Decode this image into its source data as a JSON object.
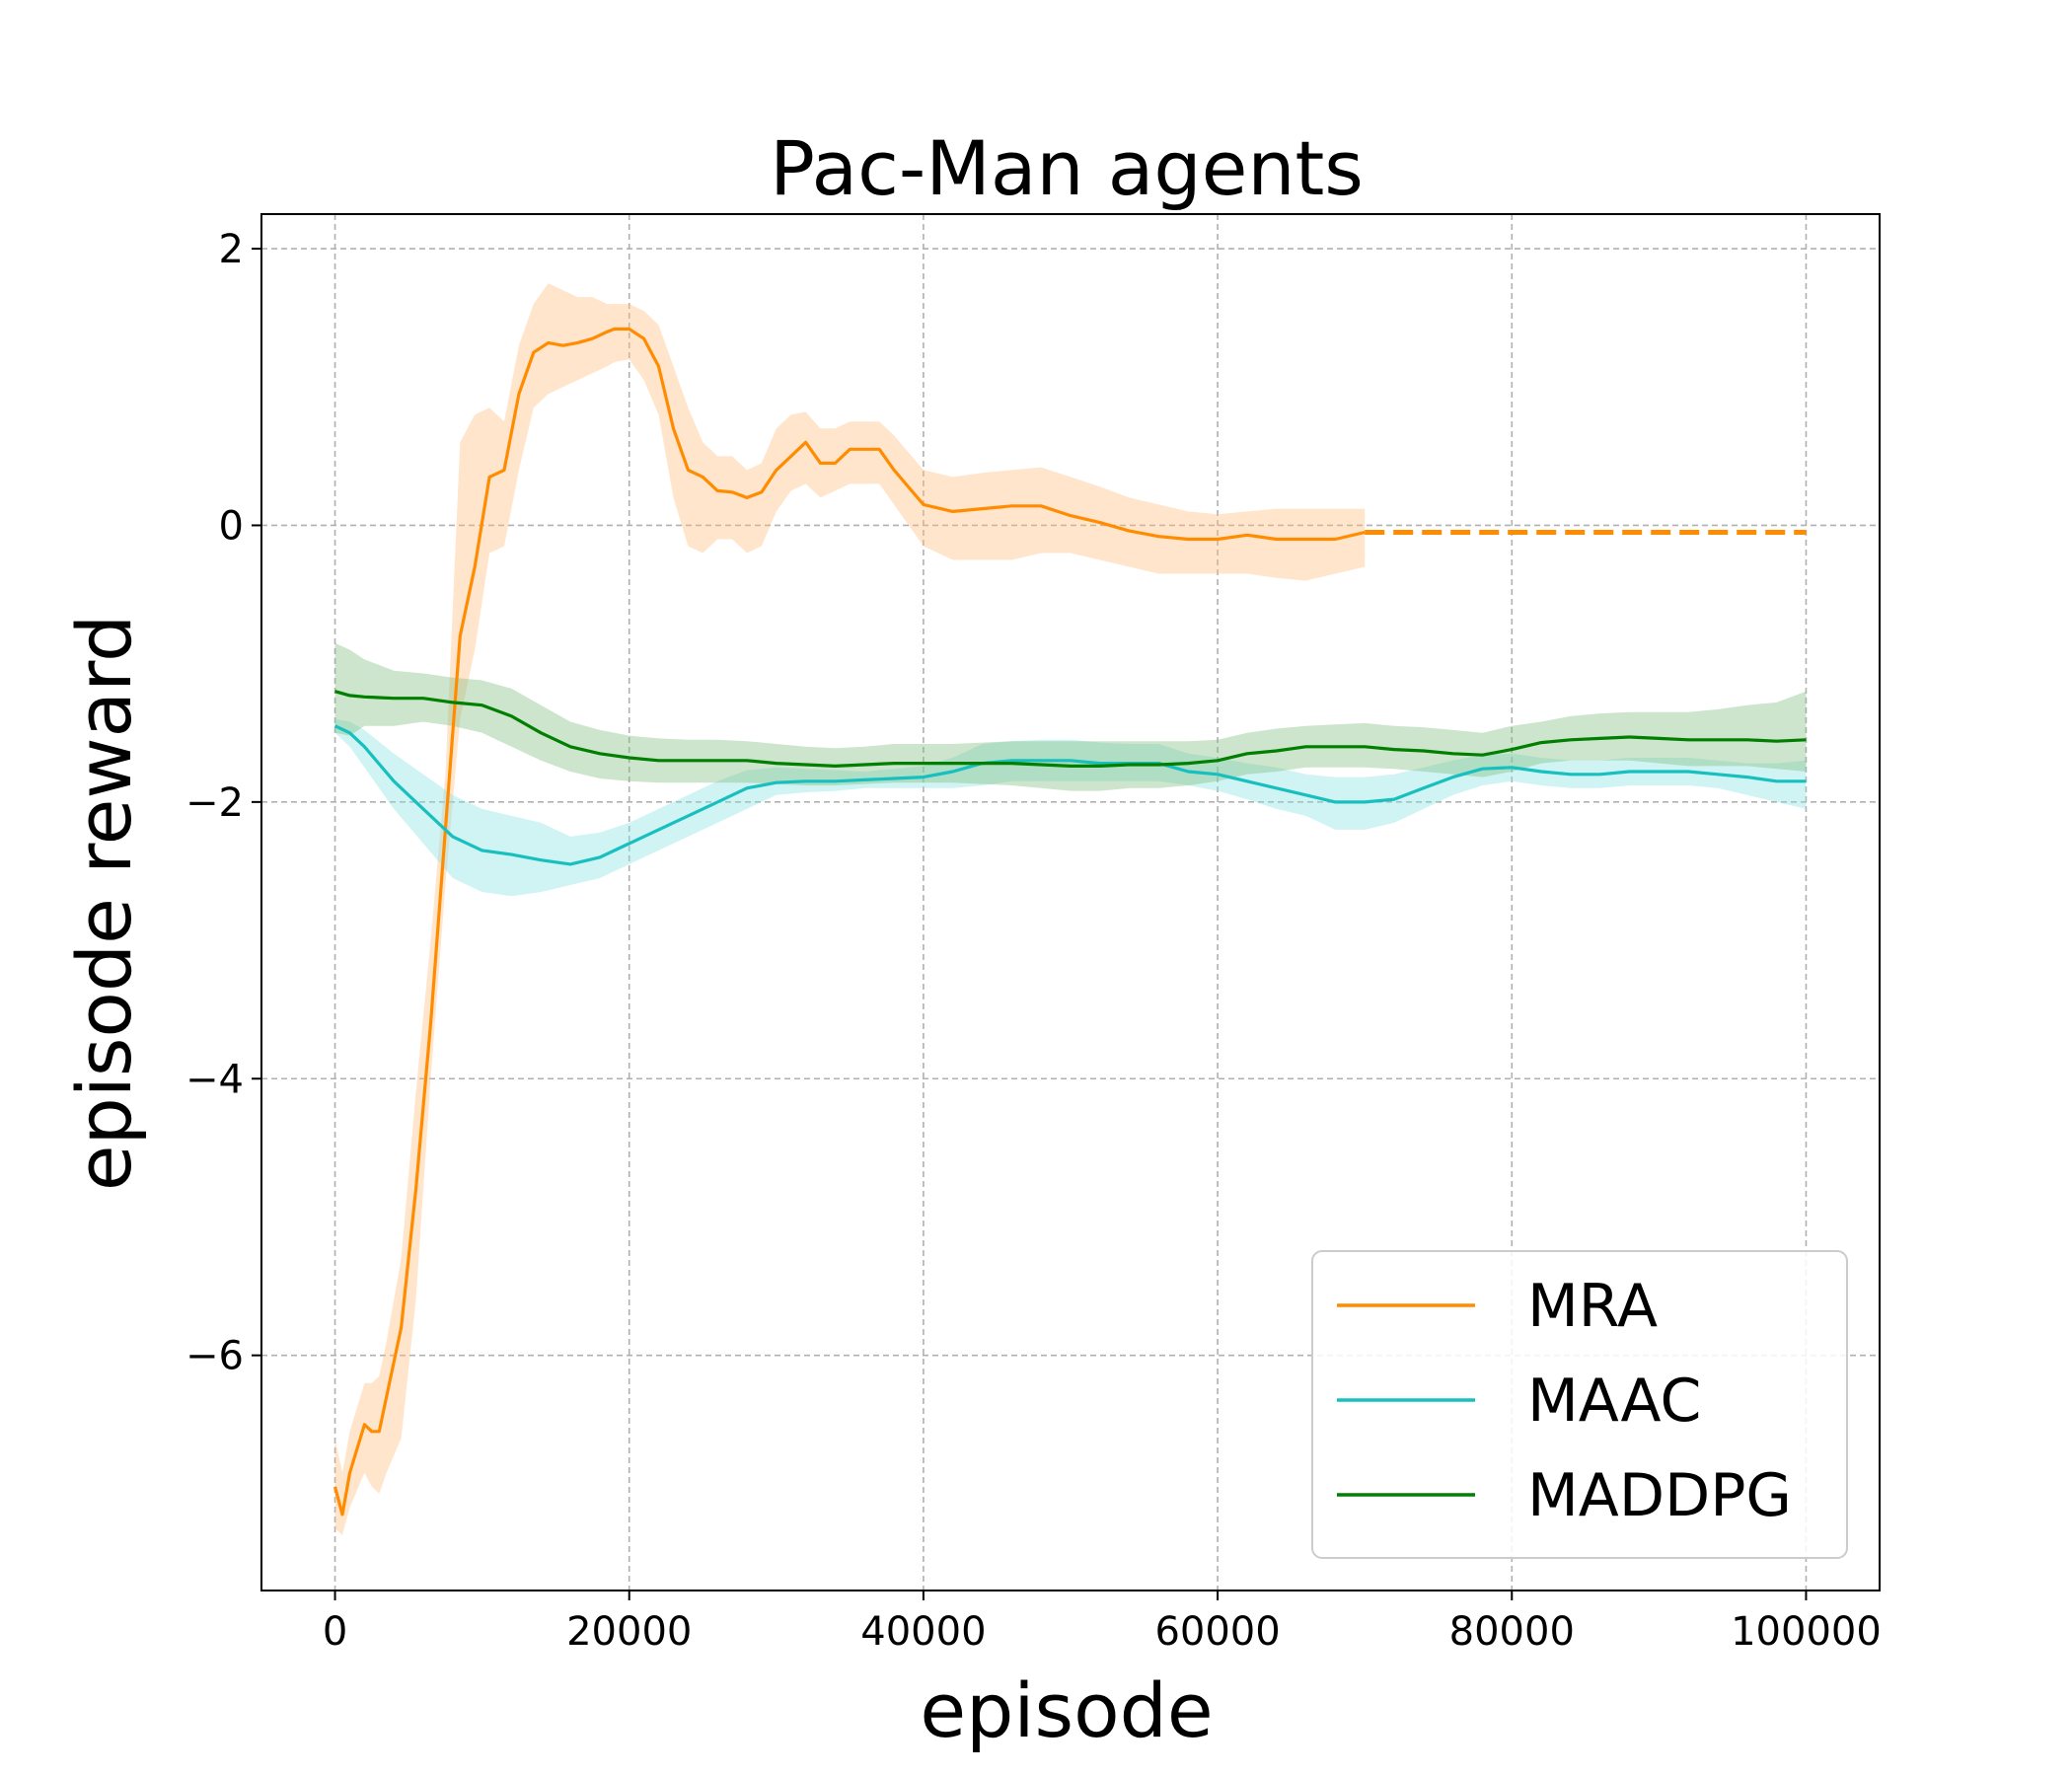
{
  "chart_data": {
    "type": "line",
    "title": "Pac-Man agents",
    "xlabel": "episode",
    "ylabel": "episode reward",
    "xlim": [
      -5000,
      105000
    ],
    "ylim": [
      -7.7,
      2.25
    ],
    "xticks": [
      0,
      20000,
      40000,
      60000,
      80000,
      100000
    ],
    "xtick_labels": [
      "0",
      "20000",
      "40000",
      "60000",
      "80000",
      "100000"
    ],
    "yticks": [
      2,
      0,
      -2,
      -4,
      -6
    ],
    "ytick_labels": [
      "2",
      "0",
      "−2",
      "−4",
      "−6"
    ],
    "grid": true,
    "legend_position": "lower-right",
    "series": [
      {
        "name": "MRA",
        "color": "#ff8c00",
        "band_color": "#ffbf80",
        "x": [
          0,
          500,
          1000,
          2000,
          2500,
          3000,
          3500,
          4500,
          5500,
          6500,
          7500,
          8500,
          9500,
          10500,
          11500,
          12500,
          13500,
          14500,
          15500,
          16500,
          17500,
          18500,
          19000,
          20000,
          21000,
          22000,
          23000,
          24000,
          25000,
          26000,
          27000,
          28000,
          29000,
          30000,
          31000,
          32000,
          33000,
          34000,
          35000,
          36000,
          37000,
          38000,
          40000,
          42000,
          44000,
          46000,
          48000,
          50000,
          52000,
          54000,
          56000,
          58000,
          60000,
          62000,
          64000,
          66000,
          68000,
          70000
        ],
        "y": [
          -6.95,
          -7.15,
          -6.85,
          -6.5,
          -6.55,
          -6.55,
          -6.3,
          -5.8,
          -4.8,
          -3.6,
          -2.2,
          -0.8,
          -0.3,
          0.35,
          0.4,
          0.95,
          1.25,
          1.32,
          1.3,
          1.32,
          1.35,
          1.4,
          1.42,
          1.42,
          1.35,
          1.15,
          0.7,
          0.4,
          0.35,
          0.25,
          0.24,
          0.2,
          0.24,
          0.4,
          0.5,
          0.6,
          0.45,
          0.45,
          0.55,
          0.55,
          0.55,
          0.4,
          0.15,
          0.1,
          0.12,
          0.14,
          0.14,
          0.07,
          0.02,
          -0.04,
          -0.08,
          -0.1,
          -0.1,
          -0.07,
          -0.1,
          -0.1,
          -0.1,
          -0.05
        ],
        "lower": [
          -7.25,
          -7.3,
          -7.1,
          -6.85,
          -6.95,
          -7.0,
          -6.85,
          -6.6,
          -5.6,
          -4.0,
          -2.6,
          -1.4,
          -0.9,
          -0.2,
          -0.15,
          0.4,
          0.85,
          0.95,
          1.0,
          1.05,
          1.1,
          1.15,
          1.18,
          1.2,
          1.05,
          0.8,
          0.2,
          -0.15,
          -0.2,
          -0.1,
          -0.1,
          -0.2,
          -0.15,
          0.1,
          0.25,
          0.3,
          0.2,
          0.25,
          0.3,
          0.3,
          0.3,
          0.15,
          -0.15,
          -0.25,
          -0.25,
          -0.25,
          -0.2,
          -0.2,
          -0.25,
          -0.3,
          -0.35,
          -0.35,
          -0.35,
          -0.35,
          -0.38,
          -0.4,
          -0.35,
          -0.3
        ],
        "upper": [
          -6.6,
          -6.85,
          -6.55,
          -6.2,
          -6.2,
          -6.15,
          -5.9,
          -5.3,
          -4.1,
          -3.0,
          -1.8,
          0.6,
          0.8,
          0.85,
          0.75,
          1.3,
          1.6,
          1.75,
          1.7,
          1.65,
          1.65,
          1.6,
          1.6,
          1.6,
          1.55,
          1.45,
          1.15,
          0.85,
          0.6,
          0.5,
          0.5,
          0.4,
          0.45,
          0.7,
          0.8,
          0.82,
          0.7,
          0.7,
          0.75,
          0.75,
          0.75,
          0.65,
          0.4,
          0.35,
          0.38,
          0.4,
          0.42,
          0.35,
          0.28,
          0.2,
          0.15,
          0.1,
          0.08,
          0.1,
          0.12,
          0.12,
          0.12,
          0.12
        ],
        "extension": {
          "x": [
            70000,
            100000
          ],
          "y": [
            -0.05,
            -0.05
          ],
          "style": "dashed"
        }
      },
      {
        "name": "MAAC",
        "color": "#17bfbf",
        "band_color": "#8ae0e0",
        "x": [
          0,
          1000,
          2000,
          4000,
          6000,
          8000,
          10000,
          12000,
          14000,
          16000,
          18000,
          20000,
          22000,
          24000,
          26000,
          28000,
          30000,
          32000,
          34000,
          36000,
          38000,
          40000,
          42000,
          44000,
          46000,
          48000,
          50000,
          52000,
          54000,
          56000,
          58000,
          60000,
          62000,
          64000,
          66000,
          68000,
          70000,
          72000,
          74000,
          76000,
          78000,
          80000,
          82000,
          84000,
          86000,
          88000,
          90000,
          92000,
          94000,
          96000,
          98000,
          100000
        ],
        "y": [
          -1.45,
          -1.5,
          -1.6,
          -1.85,
          -2.05,
          -2.25,
          -2.35,
          -2.38,
          -2.42,
          -2.45,
          -2.4,
          -2.3,
          -2.2,
          -2.1,
          -2.0,
          -1.9,
          -1.86,
          -1.85,
          -1.85,
          -1.84,
          -1.83,
          -1.82,
          -1.78,
          -1.72,
          -1.7,
          -1.7,
          -1.7,
          -1.72,
          -1.72,
          -1.72,
          -1.78,
          -1.8,
          -1.85,
          -1.9,
          -1.95,
          -2.0,
          -2.0,
          -1.98,
          -1.9,
          -1.82,
          -1.76,
          -1.75,
          -1.78,
          -1.8,
          -1.8,
          -1.78,
          -1.78,
          -1.78,
          -1.8,
          -1.82,
          -1.85,
          -1.85
        ],
        "lower": [
          -1.5,
          -1.6,
          -1.75,
          -2.05,
          -2.3,
          -2.55,
          -2.65,
          -2.68,
          -2.65,
          -2.6,
          -2.55,
          -2.45,
          -2.35,
          -2.25,
          -2.15,
          -2.05,
          -1.95,
          -1.93,
          -1.92,
          -1.9,
          -1.9,
          -1.9,
          -1.9,
          -1.88,
          -1.85,
          -1.85,
          -1.85,
          -1.85,
          -1.85,
          -1.85,
          -1.88,
          -1.92,
          -1.98,
          -2.05,
          -2.1,
          -2.2,
          -2.2,
          -2.15,
          -2.05,
          -1.95,
          -1.88,
          -1.85,
          -1.88,
          -1.9,
          -1.9,
          -1.88,
          -1.88,
          -1.88,
          -1.9,
          -1.95,
          -2.0,
          -2.05
        ],
        "upper": [
          -1.4,
          -1.42,
          -1.48,
          -1.65,
          -1.8,
          -1.95,
          -2.05,
          -2.1,
          -2.15,
          -2.25,
          -2.22,
          -2.15,
          -2.05,
          -1.95,
          -1.85,
          -1.77,
          -1.75,
          -1.76,
          -1.77,
          -1.78,
          -1.76,
          -1.74,
          -1.68,
          -1.58,
          -1.56,
          -1.55,
          -1.55,
          -1.57,
          -1.58,
          -1.58,
          -1.65,
          -1.68,
          -1.72,
          -1.75,
          -1.8,
          -1.82,
          -1.82,
          -1.8,
          -1.75,
          -1.7,
          -1.66,
          -1.65,
          -1.68,
          -1.7,
          -1.7,
          -1.68,
          -1.68,
          -1.68,
          -1.7,
          -1.72,
          -1.72,
          -1.7
        ]
      },
      {
        "name": "MADDPG",
        "color": "#007f00",
        "band_color": "#80bf80",
        "x": [
          0,
          1000,
          2000,
          4000,
          6000,
          8000,
          10000,
          12000,
          14000,
          16000,
          18000,
          20000,
          22000,
          24000,
          26000,
          28000,
          30000,
          32000,
          34000,
          36000,
          38000,
          40000,
          42000,
          44000,
          46000,
          48000,
          50000,
          52000,
          54000,
          56000,
          58000,
          60000,
          62000,
          64000,
          66000,
          68000,
          70000,
          72000,
          74000,
          76000,
          78000,
          80000,
          82000,
          84000,
          86000,
          88000,
          90000,
          92000,
          94000,
          96000,
          98000,
          100000
        ],
        "y": [
          -1.2,
          -1.23,
          -1.24,
          -1.25,
          -1.25,
          -1.28,
          -1.3,
          -1.38,
          -1.5,
          -1.6,
          -1.65,
          -1.68,
          -1.7,
          -1.7,
          -1.7,
          -1.7,
          -1.72,
          -1.73,
          -1.74,
          -1.73,
          -1.72,
          -1.72,
          -1.72,
          -1.72,
          -1.72,
          -1.73,
          -1.74,
          -1.74,
          -1.73,
          -1.73,
          -1.72,
          -1.7,
          -1.65,
          -1.63,
          -1.6,
          -1.6,
          -1.6,
          -1.62,
          -1.63,
          -1.65,
          -1.66,
          -1.62,
          -1.57,
          -1.55,
          -1.54,
          -1.53,
          -1.54,
          -1.55,
          -1.55,
          -1.55,
          -1.56,
          -1.55
        ],
        "lower": [
          -1.5,
          -1.52,
          -1.45,
          -1.45,
          -1.42,
          -1.45,
          -1.5,
          -1.6,
          -1.7,
          -1.78,
          -1.83,
          -1.85,
          -1.86,
          -1.86,
          -1.86,
          -1.86,
          -1.87,
          -1.88,
          -1.88,
          -1.87,
          -1.86,
          -1.86,
          -1.86,
          -1.87,
          -1.88,
          -1.9,
          -1.92,
          -1.92,
          -1.9,
          -1.9,
          -1.88,
          -1.85,
          -1.8,
          -1.78,
          -1.75,
          -1.75,
          -1.75,
          -1.76,
          -1.78,
          -1.8,
          -1.82,
          -1.78,
          -1.72,
          -1.7,
          -1.7,
          -1.7,
          -1.72,
          -1.74,
          -1.74,
          -1.74,
          -1.76,
          -1.78
        ],
        "upper": [
          -0.85,
          -0.9,
          -0.97,
          -1.05,
          -1.07,
          -1.1,
          -1.12,
          -1.18,
          -1.3,
          -1.42,
          -1.48,
          -1.52,
          -1.54,
          -1.55,
          -1.55,
          -1.56,
          -1.58,
          -1.6,
          -1.61,
          -1.6,
          -1.58,
          -1.58,
          -1.58,
          -1.57,
          -1.56,
          -1.56,
          -1.56,
          -1.56,
          -1.56,
          -1.56,
          -1.56,
          -1.55,
          -1.5,
          -1.47,
          -1.45,
          -1.44,
          -1.43,
          -1.45,
          -1.46,
          -1.48,
          -1.5,
          -1.45,
          -1.42,
          -1.38,
          -1.36,
          -1.35,
          -1.35,
          -1.35,
          -1.33,
          -1.3,
          -1.28,
          -1.2
        ]
      }
    ]
  }
}
